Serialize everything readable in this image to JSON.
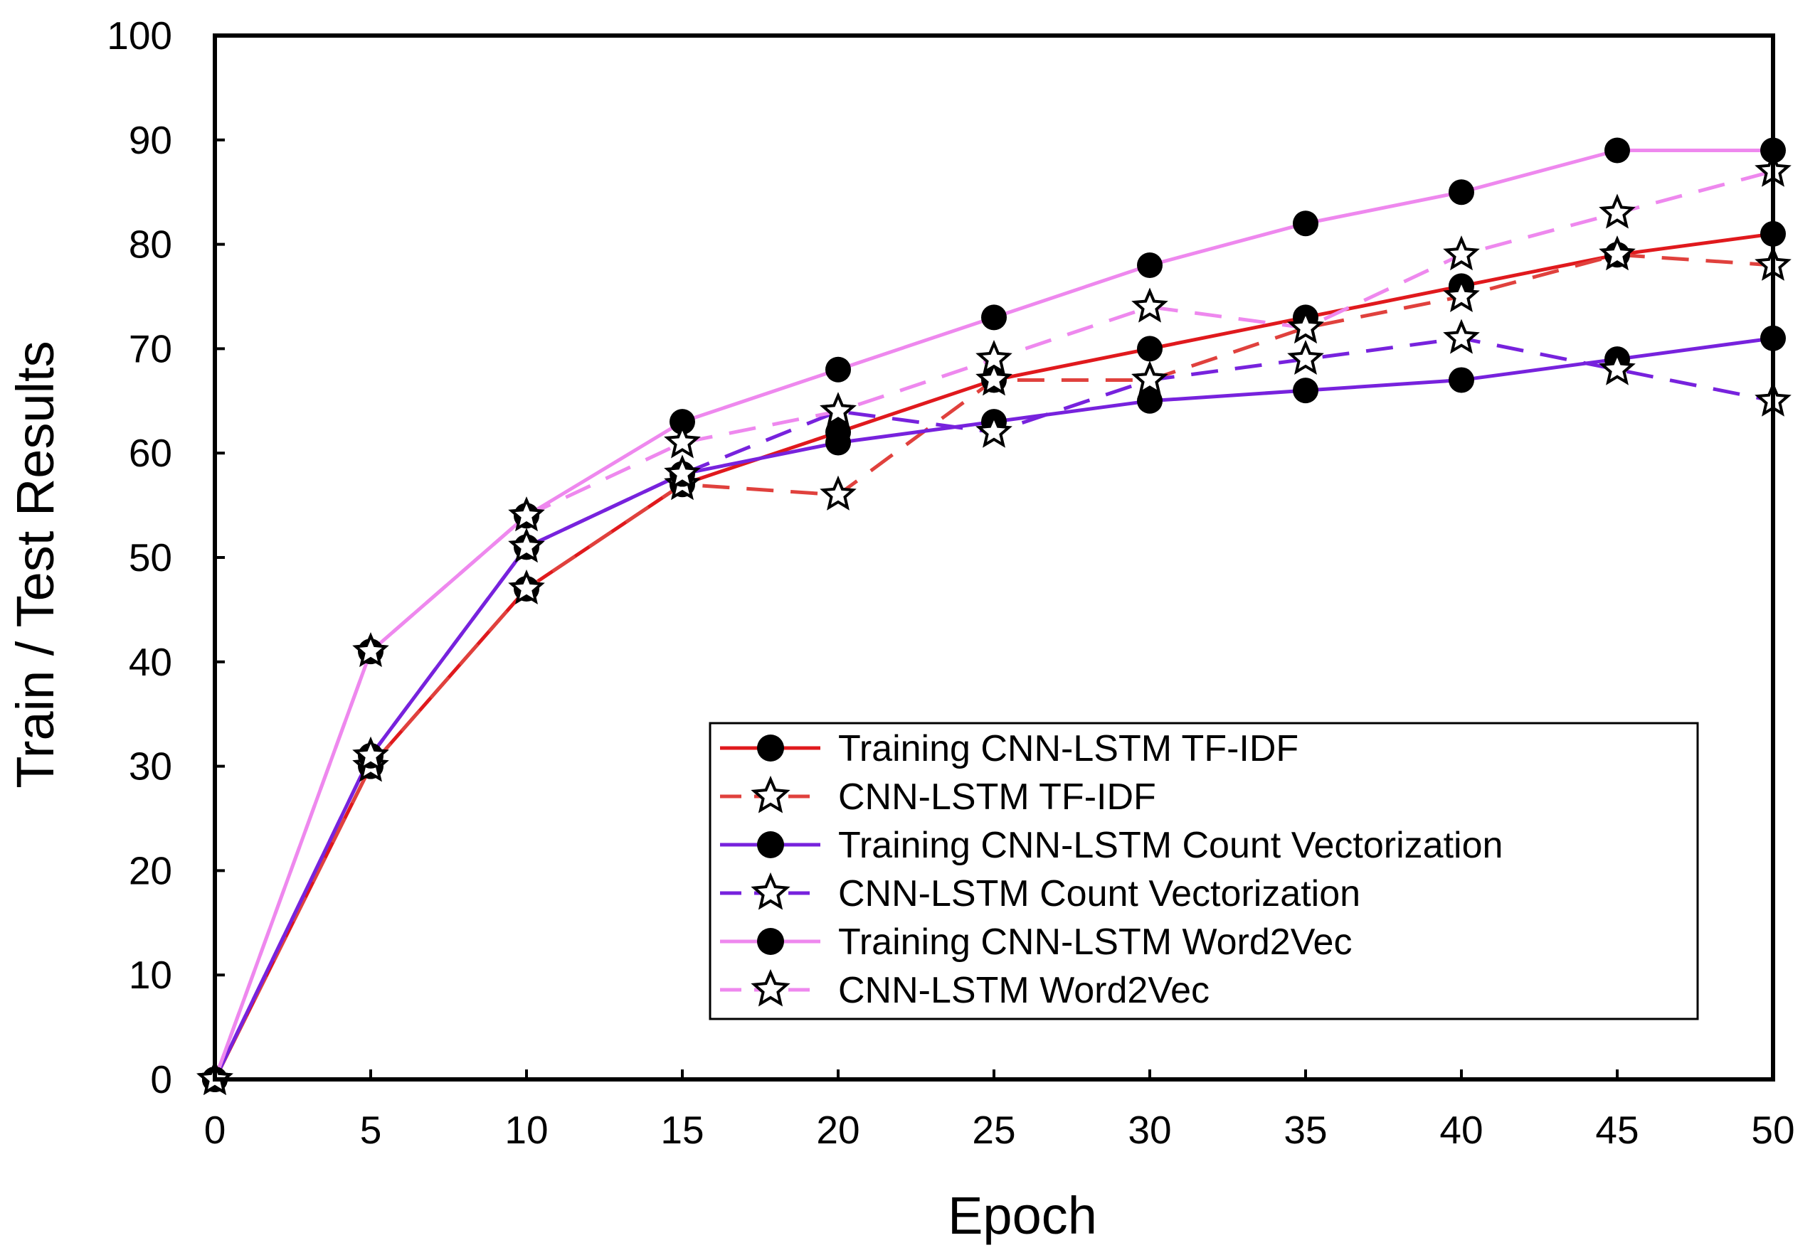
{
  "chart_data": {
    "type": "line",
    "title": "",
    "xlabel": "Epoch",
    "ylabel": "Train / Test Results",
    "xlim": [
      0,
      50
    ],
    "ylim": [
      0,
      100
    ],
    "x_ticks": [
      0,
      5,
      10,
      15,
      20,
      25,
      30,
      35,
      40,
      45,
      50
    ],
    "y_ticks": [
      0,
      10,
      20,
      30,
      40,
      50,
      60,
      70,
      80,
      90,
      100
    ],
    "grid": false,
    "legend_position": "lower-right",
    "x": [
      0,
      5,
      10,
      15,
      20,
      25,
      30,
      35,
      40,
      45,
      50
    ],
    "series": [
      {
        "name": "Training CNN-LSTM TF-IDF",
        "color": "#e0191d",
        "line_style": "solid",
        "marker": "circle",
        "values": [
          0,
          30,
          47,
          57,
          62,
          67,
          70,
          73,
          76,
          79,
          81
        ]
      },
      {
        "name": "CNN-LSTM TF-IDF",
        "color": "#e0413d",
        "line_style": "dashed",
        "marker": "star",
        "values": [
          0,
          30,
          47,
          57,
          56,
          67,
          67,
          72,
          75,
          79,
          78
        ]
      },
      {
        "name": "Training CNN-LSTM Count Vectorization",
        "color": "#7722dd",
        "line_style": "solid",
        "marker": "circle",
        "values": [
          0,
          31,
          51,
          58,
          61,
          63,
          65,
          66,
          67,
          69,
          71
        ]
      },
      {
        "name": "CNN-LSTM Count Vectorization",
        "color": "#7722dd",
        "line_style": "dashed",
        "marker": "star",
        "values": [
          0,
          31,
          51,
          58,
          64,
          62,
          67,
          69,
          71,
          68,
          65
        ]
      },
      {
        "name": "Training CNN-LSTM Word2Vec",
        "color": "#ee88ee",
        "line_style": "solid",
        "marker": "circle",
        "values": [
          0,
          41,
          54,
          63,
          68,
          73,
          78,
          82,
          85,
          89,
          89
        ]
      },
      {
        "name": "CNN-LSTM Word2Vec",
        "color": "#ee88ee",
        "line_style": "dashed",
        "marker": "star",
        "values": [
          0,
          41,
          54,
          61,
          64,
          69,
          74,
          72,
          79,
          83,
          87
        ]
      }
    ]
  }
}
